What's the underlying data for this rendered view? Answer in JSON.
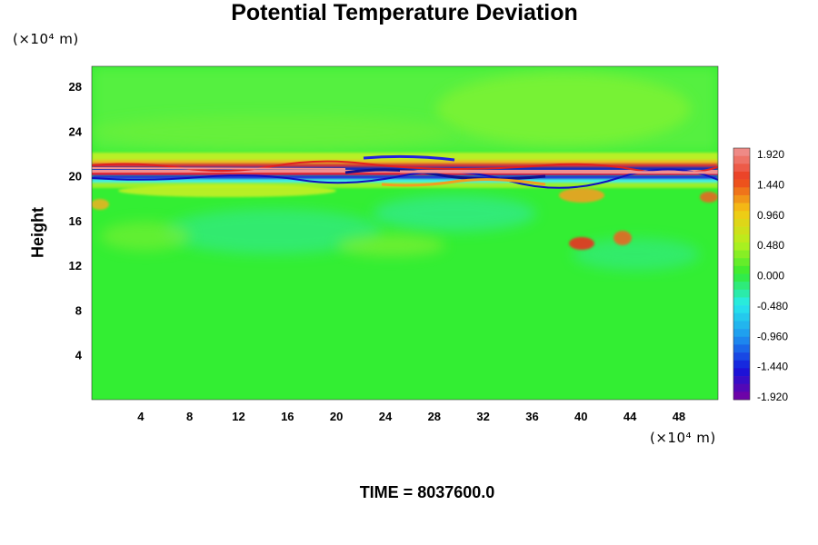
{
  "chart_data": {
    "type": "heatmap",
    "title": "Potential Temperature Deviation",
    "ylabel": "Height",
    "x_unit_label": "(×10⁴ m)",
    "y_unit_label": "(×10⁴ m)",
    "x_ticks": [
      4,
      8,
      12,
      16,
      20,
      24,
      28,
      32,
      36,
      40,
      44,
      48
    ],
    "y_ticks": [
      4,
      8,
      12,
      16,
      20,
      24,
      28
    ],
    "xlim": [
      0,
      51.2
    ],
    "ylim": [
      0,
      29.8
    ],
    "colorbar": {
      "labels": [
        "1.920",
        "1.440",
        "0.960",
        "0.480",
        "0.000",
        "-0.480",
        "-0.960",
        "-1.440",
        "-1.920"
      ],
      "range": [
        -1.92,
        1.92
      ],
      "levels": 32
    },
    "time_label": "TIME = 8037600.0",
    "colors": {
      "background_field": "#33ee33",
      "warm_peak": "#f09090",
      "cold_peak": "#7a00a0"
    }
  }
}
